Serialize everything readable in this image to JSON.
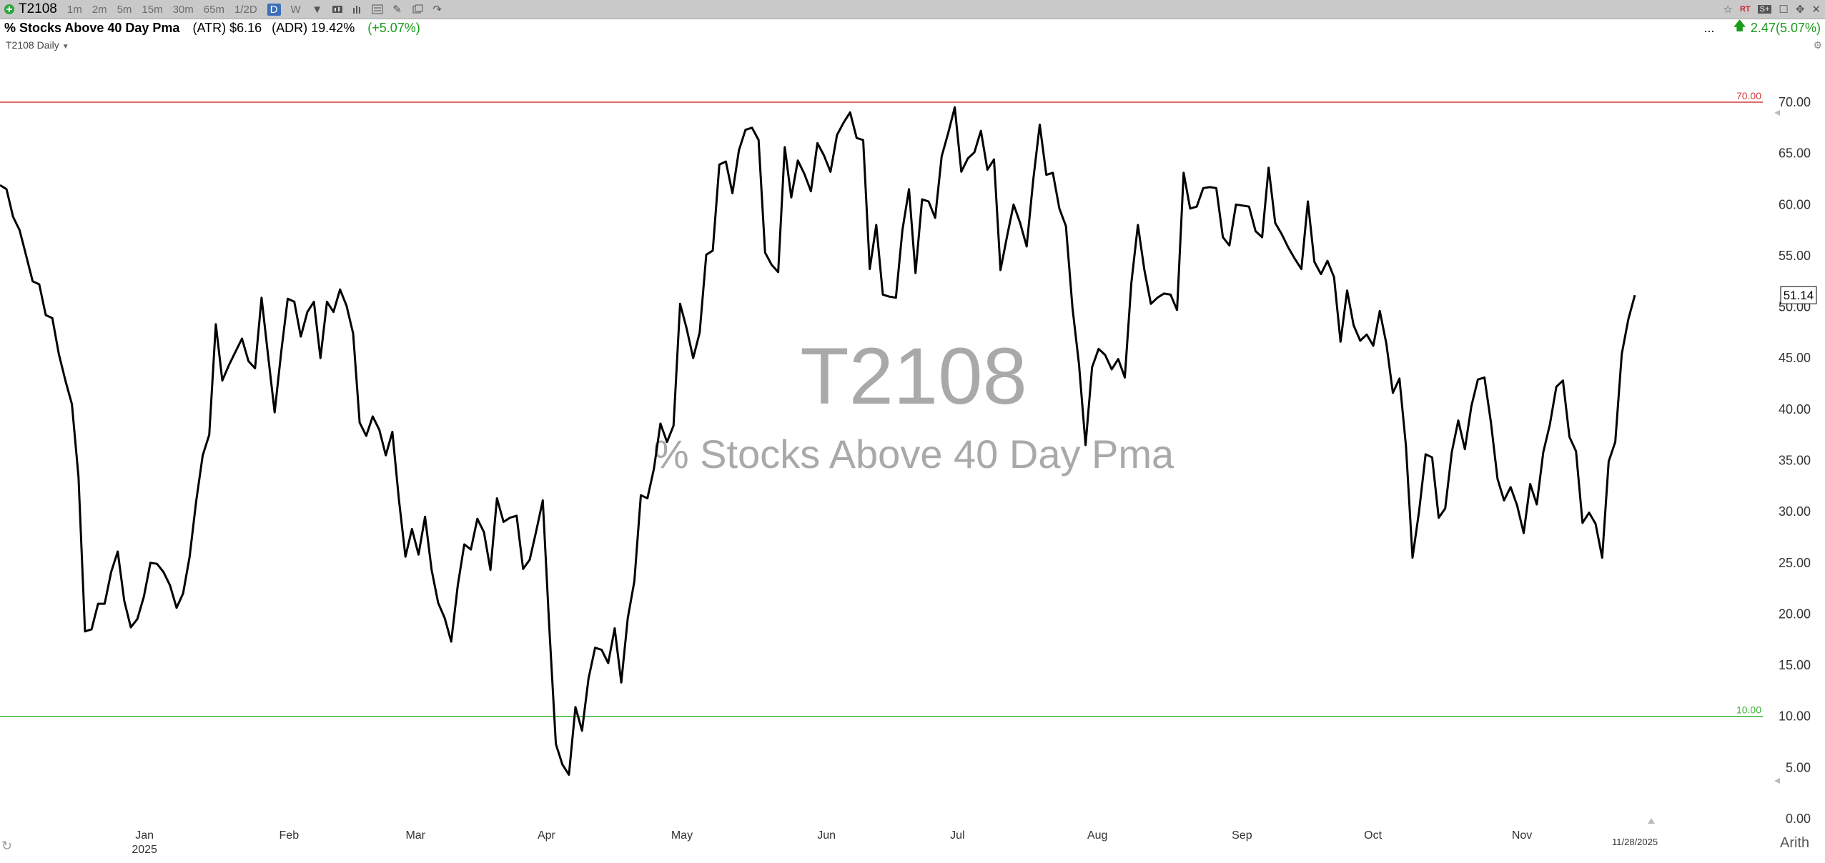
{
  "toolbar": {
    "symbol": "T2108",
    "timeframes": [
      "1m",
      "2m",
      "5m",
      "15m",
      "30m",
      "65m",
      "1/2D",
      "D",
      "W"
    ],
    "active_timeframe": "D",
    "rt_label": "RT",
    "sq_label": "S+"
  },
  "info": {
    "title": "% Stocks Above 40 Day Pma",
    "atr": "(ATR) $6.16",
    "adr": "(ADR) 19.42%",
    "change": "(+5.07%)",
    "dots": "...",
    "right_value": "2.47",
    "right_pct": "(5.07%)"
  },
  "sub_label": "T2108 Daily",
  "watermark": {
    "symbol": "T2108",
    "name": "% Stocks Above 40 Day Pma"
  },
  "colors": {
    "line": "#000000",
    "upper_ref": "#d23c3c",
    "lower_ref": "#3cb43c",
    "positive": "#1a9b1a"
  },
  "chart_data": {
    "type": "line",
    "series": [
      {
        "values": [
          61.9,
          61.5,
          58.8,
          57.5,
          55.0,
          52.5,
          52.2,
          49.2,
          48.9,
          45.4,
          42.8,
          40.5,
          33.4,
          18.3,
          18.5,
          21.0,
          21.0,
          24.1,
          26.1,
          21.3,
          18.7,
          19.5,
          21.7,
          25.0,
          24.9,
          24.1,
          22.8,
          20.6,
          22.0,
          25.6,
          31.0,
          35.5,
          37.5,
          48.3,
          42.8,
          44.3,
          45.6,
          46.9,
          44.7,
          44.0,
          50.9,
          45.2,
          39.7,
          45.6,
          50.8,
          50.5,
          47.1,
          49.5,
          50.5,
          45.0,
          50.5,
          49.5,
          51.7,
          50.1,
          47.4,
          38.7,
          37.4,
          39.3,
          38.0,
          35.5,
          37.8,
          31.2,
          25.6,
          28.3,
          25.8,
          29.5,
          24.3,
          21.1,
          19.6,
          17.3,
          22.8,
          26.8,
          26.3,
          29.3,
          28.0,
          24.3,
          31.3,
          29.0,
          29.4,
          29.6,
          24.4,
          25.3,
          28.1,
          31.1,
          18.7,
          7.3,
          5.3,
          4.3,
          10.9,
          8.6,
          13.7,
          16.7,
          16.5,
          15.2,
          18.6,
          13.3,
          19.6,
          23.2,
          31.6,
          31.3,
          34.2,
          38.6,
          36.8,
          38.4,
          50.3,
          47.9,
          45.0,
          47.5,
          55.1,
          55.5,
          63.9,
          64.2,
          61.1,
          65.3,
          67.3,
          67.5,
          66.3,
          55.3,
          54.1,
          53.4,
          65.6,
          60.7,
          64.3,
          63.0,
          61.3,
          66.0,
          64.8,
          63.2,
          66.8,
          68.0,
          69.0,
          66.5,
          66.3,
          53.7,
          58.0,
          51.2,
          51.0,
          50.9,
          57.5,
          61.5,
          53.3,
          60.5,
          60.3,
          58.7,
          64.7,
          67.0,
          69.5,
          63.2,
          64.5,
          65.1,
          67.2,
          63.4,
          64.4,
          53.6,
          56.9,
          60.0,
          58.2,
          55.9,
          62.4,
          67.8,
          62.9,
          63.1,
          59.6,
          57.9,
          49.9,
          44.4,
          36.5,
          44.1,
          45.9,
          45.3,
          43.9,
          44.9,
          43.1,
          52.3,
          58.0,
          53.6,
          50.3,
          50.9,
          51.3,
          51.2,
          49.7,
          63.1,
          59.6,
          59.8,
          61.6,
          61.7,
          61.6,
          56.8,
          56.0,
          60.0,
          59.9,
          59.8,
          57.4,
          56.8,
          63.6,
          58.2,
          57.1,
          55.8,
          54.7,
          53.7,
          60.3,
          54.4,
          53.2,
          54.5,
          52.9,
          46.6,
          51.6,
          48.2,
          46.7,
          47.3,
          46.2,
          49.6,
          46.4,
          41.6,
          43.0,
          36.4,
          25.5,
          30.0,
          35.6,
          35.3,
          29.4,
          30.3,
          35.8,
          38.9,
          36.1,
          40.3,
          42.9,
          43.1,
          38.7,
          33.2,
          31.1,
          32.4,
          30.6,
          27.9,
          32.7,
          30.7,
          35.8,
          38.5,
          42.2,
          42.8,
          37.3,
          35.9,
          28.9,
          29.9,
          28.8,
          25.5,
          34.9,
          36.8,
          45.4,
          48.8,
          51.14
        ]
      }
    ],
    "x_start": "2024-12-01",
    "x_end": "2025-11-28",
    "x_ticks": [
      {
        "label": "Jan",
        "date": "2025-01-02"
      },
      {
        "label": "Feb",
        "date": "2025-02-03"
      },
      {
        "label": "Mar",
        "date": "2025-03-03"
      },
      {
        "label": "Apr",
        "date": "2025-04-01"
      },
      {
        "label": "May",
        "date": "2025-05-01"
      },
      {
        "label": "Jun",
        "date": "2025-06-02"
      },
      {
        "label": "Jul",
        "date": "2025-07-01"
      },
      {
        "label": "Aug",
        "date": "2025-08-01"
      },
      {
        "label": "Sep",
        "date": "2025-09-02"
      },
      {
        "label": "Oct",
        "date": "2025-10-01"
      },
      {
        "label": "Nov",
        "date": "2025-11-03"
      }
    ],
    "year_label": "2025",
    "last_date_label": "11/28/2025",
    "ylim": [
      0,
      70
    ],
    "y_ticks": [
      "0.00",
      "5.00",
      "10.00",
      "15.00",
      "20.00",
      "25.00",
      "30.00",
      "35.00",
      "40.00",
      "45.00",
      "50.00",
      "55.00",
      "60.00",
      "65.00",
      "70.00"
    ],
    "reference_lines": [
      {
        "value": 70,
        "label": "70.00",
        "color": "#d23c3c"
      },
      {
        "value": 10,
        "label": "10.00",
        "color": "#3cb43c"
      }
    ],
    "last_value_label": "51.14",
    "scale_label": "Arith",
    "grid": false
  }
}
